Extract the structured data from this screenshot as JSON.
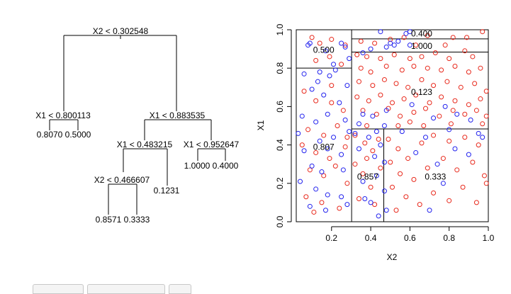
{
  "chart_data": [
    {
      "type": "tree",
      "title": "",
      "nodes": [
        {
          "id": "root",
          "split": "X2 < 0.302548"
        },
        {
          "id": "n1",
          "split": "X1 < 0.800113"
        },
        {
          "id": "n2",
          "split": "X1 < 0.883535"
        },
        {
          "id": "n3",
          "split": "X1 < 0.483215"
        },
        {
          "id": "n4",
          "split": "X1 < 0.952647"
        },
        {
          "id": "n5",
          "split": "X2 < 0.466607"
        }
      ],
      "leaves": [
        "0.8070",
        "0.5000",
        "0.8571",
        "0.3333",
        "0.1231",
        "1.0000",
        "0.4000"
      ]
    },
    {
      "type": "scatter",
      "title": "",
      "xlabel": "X2",
      "ylabel": "X1",
      "xlim": [
        0.02,
        1.0
      ],
      "ylim": [
        0.0,
        1.0
      ],
      "xticks": [
        "0.2",
        "0.4",
        "0.6",
        "0.8",
        "1.0"
      ],
      "yticks": [
        "0.0",
        "0.2",
        "0.4",
        "0.6",
        "0.8",
        "1.0"
      ],
      "vlines": [
        {
          "x": 0.302548,
          "y0": 0.0,
          "y1": 1.0
        },
        {
          "x": 0.466607,
          "y0": 0.0,
          "y1": 0.483215
        }
      ],
      "hlines": [
        {
          "y": 0.800113,
          "x0": 0.02,
          "x1": 0.302548
        },
        {
          "y": 0.483215,
          "x0": 0.302548,
          "x1": 1.0
        },
        {
          "y": 0.883535,
          "x0": 0.302548,
          "x1": 1.0
        },
        {
          "y": 0.952647,
          "x0": 0.302548,
          "x1": 1.0
        }
      ],
      "region_labels": [
        {
          "text": "0.400",
          "x": 0.66,
          "y": 0.98
        },
        {
          "text": "1.000",
          "x": 0.66,
          "y": 0.915
        },
        {
          "text": "0.500",
          "x": 0.16,
          "y": 0.895
        },
        {
          "text": "0.123",
          "x": 0.66,
          "y": 0.675
        },
        {
          "text": "0.807",
          "x": 0.16,
          "y": 0.39
        },
        {
          "text": "0.857",
          "x": 0.385,
          "y": 0.235
        },
        {
          "text": "0.333",
          "x": 0.73,
          "y": 0.235
        }
      ],
      "series": [
        {
          "color": "#e8291c",
          "points": [
            [
              0.89,
              0.96
            ],
            [
              0.97,
              0.99
            ],
            [
              0.82,
              0.96
            ],
            [
              0.69,
              0.97
            ],
            [
              0.35,
              0.94
            ],
            [
              0.42,
              0.93
            ],
            [
              0.5,
              0.95
            ],
            [
              0.57,
              0.96
            ],
            [
              0.63,
              0.92
            ],
            [
              0.78,
              0.92
            ],
            [
              0.88,
              0.89
            ],
            [
              0.33,
              0.87
            ],
            [
              0.38,
              0.86
            ],
            [
              0.45,
              0.85
            ],
            [
              0.52,
              0.87
            ],
            [
              0.6,
              0.85
            ],
            [
              0.66,
              0.86
            ],
            [
              0.73,
              0.88
            ],
            [
              0.8,
              0.85
            ],
            [
              0.92,
              0.86
            ],
            [
              0.35,
              0.8
            ],
            [
              0.4,
              0.78
            ],
            [
              0.48,
              0.81
            ],
            [
              0.56,
              0.79
            ],
            [
              0.62,
              0.81
            ],
            [
              0.69,
              0.8
            ],
            [
              0.76,
              0.79
            ],
            [
              0.83,
              0.81
            ],
            [
              0.9,
              0.78
            ],
            [
              0.96,
              0.8
            ],
            [
              0.34,
              0.73
            ],
            [
              0.41,
              0.71
            ],
            [
              0.47,
              0.74
            ],
            [
              0.53,
              0.72
            ],
            [
              0.59,
              0.7
            ],
            [
              0.66,
              0.74
            ],
            [
              0.72,
              0.71
            ],
            [
              0.79,
              0.73
            ],
            [
              0.86,
              0.7
            ],
            [
              0.93,
              0.72
            ],
            [
              0.99,
              0.68
            ],
            [
              0.33,
              0.65
            ],
            [
              0.39,
              0.63
            ],
            [
              0.45,
              0.66
            ],
            [
              0.51,
              0.62
            ],
            [
              0.57,
              0.64
            ],
            [
              0.63,
              0.66
            ],
            [
              0.7,
              0.62
            ],
            [
              0.76,
              0.65
            ],
            [
              0.83,
              0.63
            ],
            [
              0.9,
              0.61
            ],
            [
              0.96,
              0.64
            ],
            [
              0.36,
              0.58
            ],
            [
              0.43,
              0.56
            ],
            [
              0.49,
              0.59
            ],
            [
              0.55,
              0.55
            ],
            [
              0.62,
              0.57
            ],
            [
              0.68,
              0.59
            ],
            [
              0.75,
              0.55
            ],
            [
              0.82,
              0.58
            ],
            [
              0.88,
              0.56
            ],
            [
              0.94,
              0.58
            ],
            [
              0.99,
              0.55
            ],
            [
              0.38,
              0.5
            ],
            [
              0.54,
              0.5
            ],
            [
              0.6,
              0.52
            ],
            [
              0.67,
              0.5
            ],
            [
              0.81,
              0.51
            ],
            [
              0.97,
              0.51
            ],
            [
              0.1,
              0.96
            ],
            [
              0.14,
              0.93
            ],
            [
              0.2,
              0.95
            ],
            [
              0.27,
              0.92
            ],
            [
              0.19,
              0.86
            ],
            [
              0.12,
              0.84
            ],
            [
              0.25,
              0.82
            ],
            [
              0.06,
              0.68
            ],
            [
              0.12,
              0.63
            ],
            [
              0.2,
              0.71
            ],
            [
              0.26,
              0.58
            ],
            [
              0.08,
              0.48
            ],
            [
              0.16,
              0.45
            ],
            [
              0.23,
              0.5
            ],
            [
              0.05,
              0.4
            ],
            [
              0.12,
              0.36
            ],
            [
              0.19,
              0.33
            ],
            [
              0.27,
              0.39
            ],
            [
              0.09,
              0.27
            ],
            [
              0.16,
              0.24
            ],
            [
              0.22,
              0.29
            ],
            [
              0.28,
              0.2
            ],
            [
              0.07,
              0.13
            ],
            [
              0.15,
              0.1
            ],
            [
              0.24,
              0.07
            ],
            [
              0.11,
              0.05
            ],
            [
              0.2,
              0.62
            ],
            [
              0.28,
              0.44
            ],
            [
              0.32,
              0.45
            ],
            [
              0.37,
              0.41
            ],
            [
              0.41,
              0.37
            ],
            [
              0.44,
              0.43
            ],
            [
              0.32,
              0.3
            ],
            [
              0.36,
              0.25
            ],
            [
              0.4,
              0.18
            ],
            [
              0.45,
              0.28
            ],
            [
              0.34,
              0.12
            ],
            [
              0.42,
              0.09
            ],
            [
              0.38,
              0.33
            ],
            [
              0.49,
              0.43
            ],
            [
              0.54,
              0.38
            ],
            [
              0.59,
              0.33
            ],
            [
              0.66,
              0.41
            ],
            [
              0.72,
              0.45
            ],
            [
              0.8,
              0.42
            ],
            [
              0.88,
              0.44
            ],
            [
              0.95,
              0.4
            ],
            [
              0.5,
              0.31
            ],
            [
              0.55,
              0.25
            ],
            [
              0.62,
              0.22
            ],
            [
              0.69,
              0.28
            ],
            [
              0.77,
              0.33
            ],
            [
              0.84,
              0.27
            ],
            [
              0.92,
              0.31
            ],
            [
              0.98,
              0.24
            ],
            [
              0.51,
              0.18
            ],
            [
              0.58,
              0.13
            ],
            [
              0.65,
              0.09
            ],
            [
              0.72,
              0.15
            ],
            [
              0.8,
              0.11
            ],
            [
              0.87,
              0.18
            ],
            [
              0.94,
              0.1
            ],
            [
              0.53,
              0.06
            ],
            [
              0.99,
              0.2
            ]
          ]
        },
        {
          "color": "#2222ee",
          "points": [
            [
              0.45,
              0.99
            ],
            [
              0.58,
              0.98
            ],
            [
              0.6,
              0.99
            ],
            [
              0.5,
              0.93
            ],
            [
              0.52,
              0.92
            ],
            [
              0.54,
              0.94
            ],
            [
              0.48,
              0.91
            ],
            [
              0.4,
              0.9
            ],
            [
              0.36,
              0.88
            ],
            [
              0.08,
              0.92
            ],
            [
              0.09,
              0.93
            ],
            [
              0.17,
              0.89
            ],
            [
              0.25,
              0.93
            ],
            [
              0.27,
              0.91
            ],
            [
              0.21,
              0.82
            ],
            [
              0.29,
              0.85
            ],
            [
              0.14,
              0.78
            ],
            [
              0.22,
              0.79
            ],
            [
              0.06,
              0.77
            ],
            [
              0.13,
              0.73
            ],
            [
              0.19,
              0.76
            ],
            [
              0.28,
              0.71
            ],
            [
              0.1,
              0.69
            ],
            [
              0.16,
              0.66
            ],
            [
              0.24,
              0.62
            ],
            [
              0.05,
              0.55
            ],
            [
              0.12,
              0.52
            ],
            [
              0.18,
              0.56
            ],
            [
              0.27,
              0.53
            ],
            [
              0.03,
              0.46
            ],
            [
              0.14,
              0.42
            ],
            [
              0.21,
              0.44
            ],
            [
              0.29,
              0.47
            ],
            [
              0.06,
              0.37
            ],
            [
              0.18,
              0.38
            ],
            [
              0.25,
              0.35
            ],
            [
              0.1,
              0.29
            ],
            [
              0.15,
              0.26
            ],
            [
              0.26,
              0.27
            ],
            [
              0.04,
              0.21
            ],
            [
              0.12,
              0.17
            ],
            [
              0.18,
              0.14
            ],
            [
              0.25,
              0.13
            ],
            [
              0.09,
              0.08
            ],
            [
              0.17,
              0.06
            ],
            [
              0.28,
              0.09
            ],
            [
              0.6,
              0.92
            ],
            [
              0.61,
              0.61
            ],
            [
              0.72,
              0.54
            ],
            [
              0.78,
              0.6
            ],
            [
              0.84,
              0.56
            ],
            [
              0.91,
              0.53
            ],
            [
              0.8,
              0.48
            ],
            [
              0.95,
              0.46
            ],
            [
              0.41,
              0.55
            ],
            [
              0.48,
              0.58
            ],
            [
              0.36,
              0.56
            ],
            [
              0.47,
              0.5
            ],
            [
              0.34,
              0.51
            ],
            [
              0.43,
              0.47
            ],
            [
              0.32,
              0.46
            ],
            [
              0.39,
              0.44
            ],
            [
              0.45,
              0.4
            ],
            [
              0.34,
              0.38
            ],
            [
              0.42,
              0.34
            ],
            [
              0.47,
              0.31
            ],
            [
              0.36,
              0.21
            ],
            [
              0.43,
              0.24
            ],
            [
              0.47,
              0.16
            ],
            [
              0.4,
              0.1
            ],
            [
              0.44,
              0.03
            ],
            [
              0.37,
              0.12
            ],
            [
              0.48,
              0.06
            ],
            [
              0.56,
              0.47
            ],
            [
              0.63,
              0.36
            ],
            [
              0.68,
              0.44
            ],
            [
              0.74,
              0.3
            ],
            [
              0.83,
              0.38
            ],
            [
              0.9,
              0.35
            ],
            [
              0.97,
              0.44
            ],
            [
              0.7,
              0.06
            ],
            [
              0.77,
              0.2
            ]
          ]
        }
      ]
    }
  ]
}
